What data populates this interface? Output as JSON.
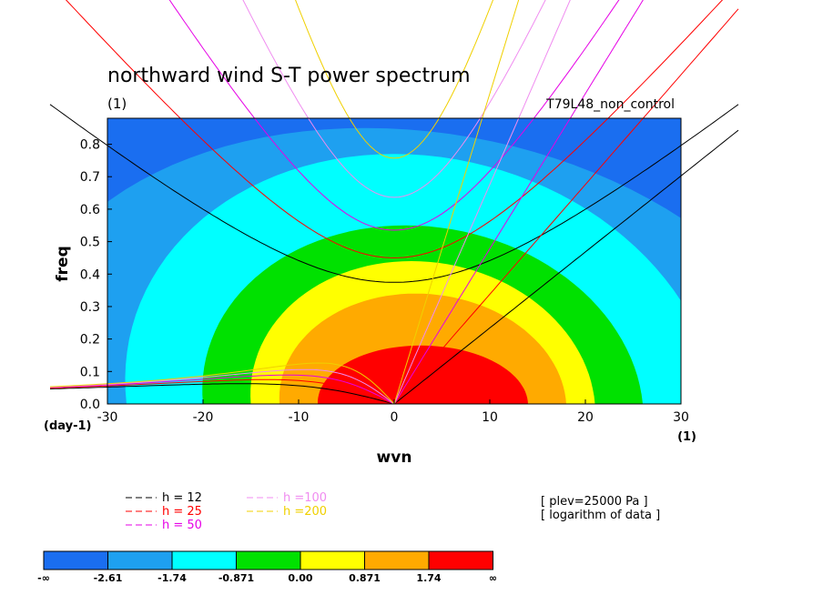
{
  "chart_data": {
    "type": "heatmap",
    "title": "northward wind S-T power spectrum",
    "title_units": "(1)",
    "experiment": "T79L48_non_control",
    "xlabel": "wvn",
    "ylabel": "freq",
    "x_units": "(1)",
    "y_units": "(day-1)",
    "xlim": [
      -30,
      30
    ],
    "ylim": [
      0,
      0.88
    ],
    "x_ticks": [
      "-30",
      "-20",
      "-10",
      "0",
      "10",
      "20",
      "30"
    ],
    "y_ticks": [
      "0.0",
      "0.1",
      "0.2",
      "0.3",
      "0.4",
      "0.5",
      "0.6",
      "0.7",
      "0.8"
    ],
    "contour_levels": [
      -2.61,
      -1.74,
      -0.871,
      0.0,
      0.871,
      1.74
    ],
    "colorbar": {
      "labels": [
        "-∞",
        "-2.61",
        "-1.74",
        "-0.871",
        "0.00",
        "0.871",
        "1.74",
        "∞"
      ],
      "colors": [
        "#1a6ef0",
        "#1ea0f0",
        "#00ffff",
        "#00e100",
        "#ffff00",
        "#ffaa00",
        "#ff0000"
      ]
    },
    "contour_peak": {
      "x": 3,
      "y": 0
    },
    "dispersion_curves": [
      {
        "legend": "h = 12",
        "color": "#000000",
        "equivalent_depth": 12
      },
      {
        "legend": "h = 25",
        "color": "#ff0000",
        "equivalent_depth": 25
      },
      {
        "legend": "h = 50",
        "color": "#e600e6",
        "equivalent_depth": 50
      },
      {
        "legend": "h =100",
        "color": "#f08cf0",
        "equivalent_depth": 100
      },
      {
        "legend": "h =200",
        "color": "#f0d000",
        "equivalent_depth": 200
      }
    ],
    "notes": [
      "[ plev=25000 Pa ]",
      "[ logarithm of data ]"
    ],
    "grid": false,
    "legend_position": "bottom-left"
  }
}
